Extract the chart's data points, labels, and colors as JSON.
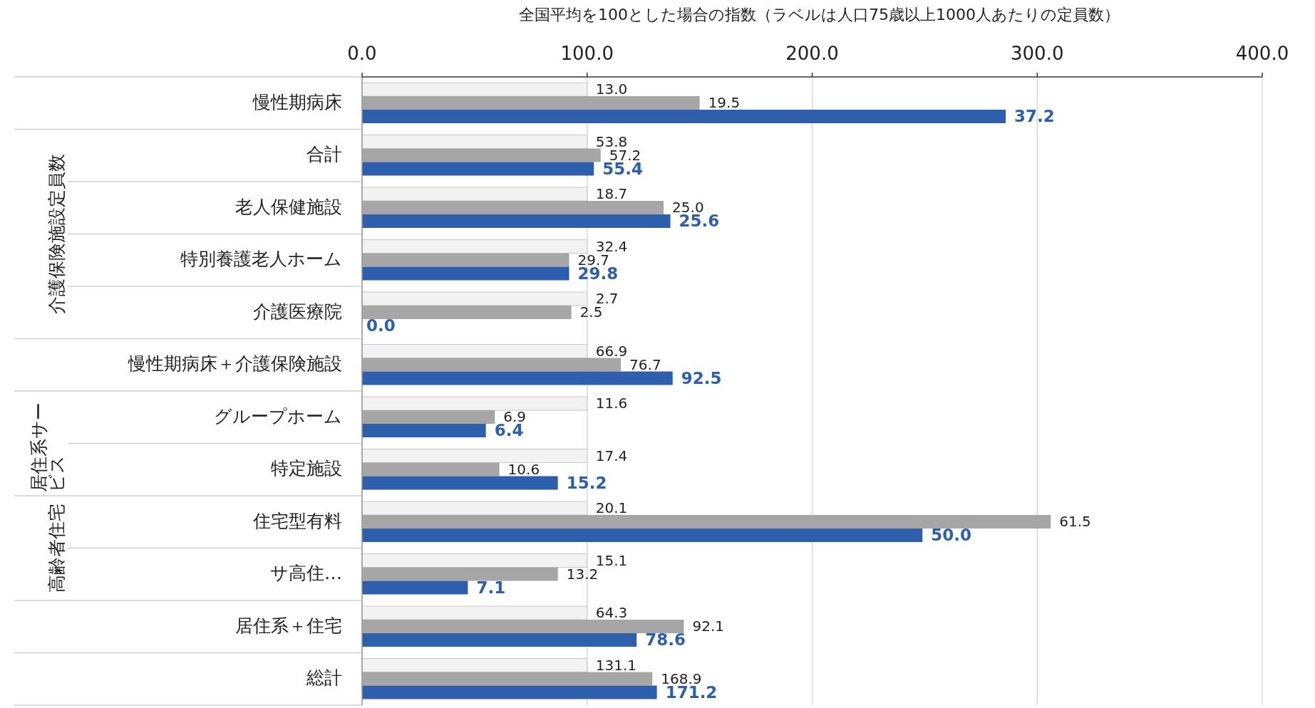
{
  "chart_data": {
    "type": "bar",
    "orientation": "horizontal",
    "xlabel": "全国平均を100とした場合の指数（ラベルは人口75歳以上1000人あたりの定員数）",
    "categories": [
      "慢性期病床",
      "合計",
      "老人保健施設",
      "特別養護老人ホーム",
      "介護医療院",
      "慢性期病床＋介護保険施設",
      "グループホーム",
      "特定施設",
      "住宅型有料",
      "サ高住…",
      "居住系＋住宅",
      "総計"
    ],
    "series": [
      {
        "color": "#f2f2f2",
        "values": [
          100,
          100,
          100,
          100,
          100,
          100,
          100,
          100,
          100,
          100,
          100,
          100
        ]
      },
      {
        "color": "#a6a6a6",
        "values": [
          150,
          106,
          134,
          92,
          93,
          115,
          59,
          61,
          306,
          87,
          143,
          129
        ]
      },
      {
        "color": "#2e5fac",
        "values": [
          286,
          103,
          137,
          92,
          0,
          138,
          55,
          87,
          249,
          47,
          122,
          131
        ]
      }
    ],
    "xlim": [
      0,
      400
    ],
    "xticks": [
      {
        "value": 0,
        "label": "0.0"
      },
      {
        "value": 100,
        "label": "100.0"
      },
      {
        "value": 200,
        "label": "200.0"
      },
      {
        "value": 300,
        "label": "300.0"
      },
      {
        "value": 400,
        "label": "400.0"
      }
    ],
    "grid": "x",
    "annotations": [
      "介護保険施設定員数",
      "居住系サービス",
      "高齢者住宅",
      "13.0",
      "19.5",
      "37.2",
      "53.8",
      "57.2",
      "55.4",
      "18.7",
      "25.0",
      "25.6",
      "32.4",
      "29.7",
      "29.8",
      "2.7",
      "2.5",
      "0.0",
      "66.9",
      "76.7",
      "92.5",
      "11.6",
      "6.9",
      "6.4",
      "17.4",
      "10.6",
      "15.2",
      "20.1",
      "61.5",
      "50.0",
      "15.1",
      "13.2",
      "7.1",
      "64.3",
      "92.1",
      "78.6",
      "131.1",
      "168.9",
      "171.2"
    ]
  }
}
